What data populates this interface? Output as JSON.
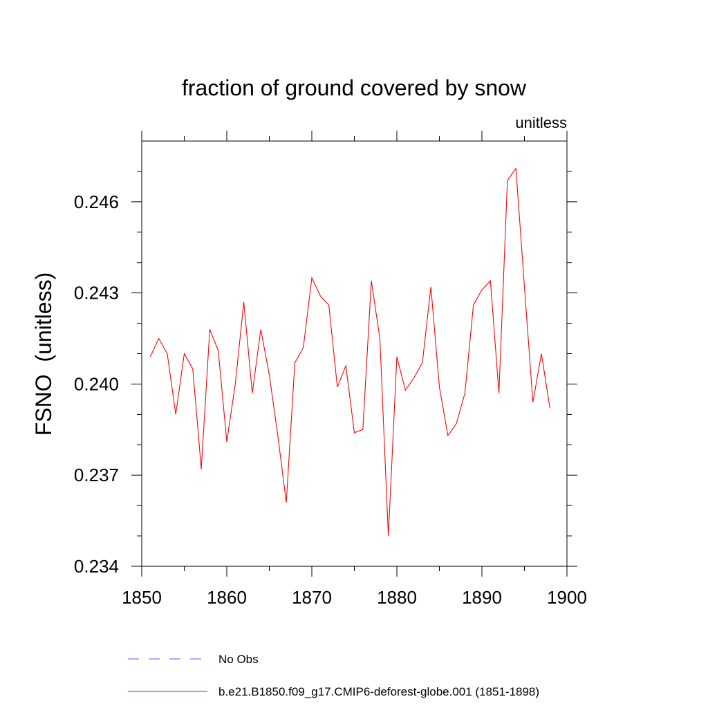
{
  "chart_data": {
    "type": "line",
    "title": "fraction of ground covered by snow",
    "units_label": "unitless",
    "ylabel": "FSNO  (unitless)",
    "xlabel": "",
    "xlim": [
      1850,
      1900
    ],
    "ylim": [
      0.234,
      0.248
    ],
    "x_ticks": [
      1850,
      1860,
      1870,
      1880,
      1890,
      1900
    ],
    "x_tick_labels": [
      "1850",
      "1860",
      "1870",
      "1880",
      "1890",
      "1900"
    ],
    "y_ticks": [
      0.234,
      0.237,
      0.24,
      0.243,
      0.246
    ],
    "y_tick_labels": [
      "0.234",
      "0.237",
      "0.240",
      "0.243",
      "0.246"
    ],
    "grid": false,
    "legend_position": "bottom",
    "series": [
      {
        "name": "b.e21.B1850.f09_g17.CMIP6-deforest-globe.001 (1851-1898)",
        "color": "#ff0000",
        "dash": "solid",
        "x": [
          1851,
          1852,
          1853,
          1854,
          1855,
          1856,
          1857,
          1858,
          1859,
          1860,
          1861,
          1862,
          1863,
          1864,
          1865,
          1866,
          1867,
          1868,
          1869,
          1870,
          1871,
          1872,
          1873,
          1874,
          1875,
          1876,
          1877,
          1878,
          1879,
          1880,
          1881,
          1882,
          1883,
          1884,
          1885,
          1886,
          1887,
          1888,
          1889,
          1890,
          1891,
          1892,
          1893,
          1894,
          1895,
          1896,
          1897,
          1898
        ],
        "y": [
          0.2409,
          0.2415,
          0.241,
          0.239,
          0.241,
          0.2405,
          0.2372,
          0.2418,
          0.2411,
          0.2381,
          0.24,
          0.2427,
          0.2397,
          0.2418,
          0.2403,
          0.2383,
          0.2361,
          0.2407,
          0.2412,
          0.2435,
          0.2429,
          0.2426,
          0.2399,
          0.2406,
          0.2384,
          0.2385,
          0.2434,
          0.2415,
          0.235,
          0.2409,
          0.2398,
          0.2402,
          0.2407,
          0.2432,
          0.2399,
          0.2383,
          0.2387,
          0.2397,
          0.2426,
          0.2431,
          0.2434,
          0.2397,
          0.2467,
          0.2471,
          0.2432,
          0.2394,
          0.241,
          0.2392
        ]
      }
    ],
    "legend": [
      {
        "label": "No Obs",
        "color": "#5555ff",
        "dash": "dashed"
      },
      {
        "label": "b.e21.B1850.f09_g17.CMIP6-deforest-globe.001 (1851-1898)",
        "color": "#ff0000",
        "dash": "solid"
      }
    ]
  }
}
